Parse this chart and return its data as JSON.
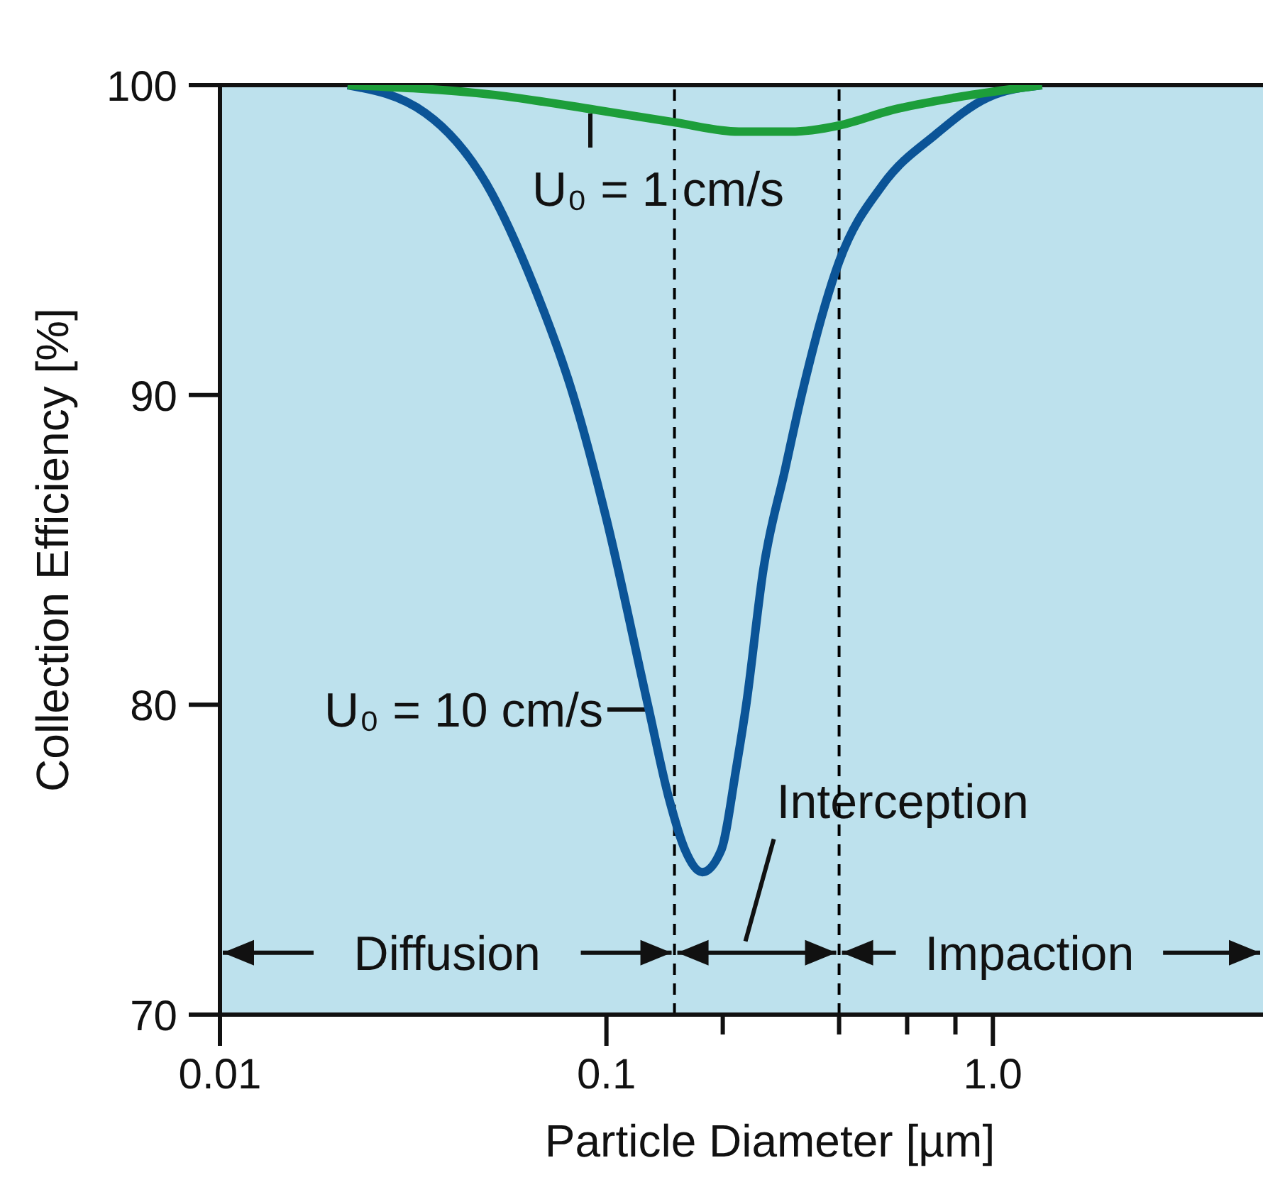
{
  "chart_data": {
    "type": "line",
    "xlabel": "Particle Diameter [µm]",
    "ylabel": "Collection Efficiency [%]",
    "log": "x",
    "xlim": [
      0.01,
      5
    ],
    "ylim": [
      70,
      100
    ],
    "xticks": [
      0.01,
      0.1,
      {
        "value": 0.2,
        "label": null
      },
      {
        "value": 0.4,
        "label": null
      },
      {
        "value": 0.6,
        "label": null
      },
      {
        "value": 0.8,
        "label": null
      },
      {
        "value": 1,
        "label": "1.0"
      }
    ],
    "yticks": [
      70,
      80,
      90,
      100
    ],
    "grid": false,
    "legend": false,
    "marker": "none",
    "line_style": "solid",
    "series": [
      {
        "name": "U₀ = 10 cm/s",
        "color": "#0b5497",
        "x": [
          0.0214,
          0.034,
          0.049,
          0.065,
          0.082,
          0.1,
          0.128,
          0.145,
          0.16,
          0.177,
          0.198,
          0.217,
          0.23,
          0.255,
          0.29,
          0.32,
          0.4,
          0.52,
          0.71,
          0.97,
          1.34
        ],
        "values": [
          100,
          99.1,
          96.8,
          93.5,
          90,
          86,
          80,
          77,
          75.3,
          74.6,
          75.3,
          78,
          80,
          84.4,
          87.6,
          90,
          94.3,
          96.8,
          98.4,
          99.6,
          100
        ]
      },
      {
        "name": "U₀ = 1 cm/s",
        "color": "#1d9e3a",
        "x": [
          0.0214,
          0.05,
          0.094,
          0.15,
          0.22,
          0.3,
          0.4,
          0.55,
          0.8,
          1.34
        ],
        "values": [
          100,
          99.7,
          99.2,
          98.8,
          98.5,
          98.5,
          98.7,
          99.2,
          99.6,
          100
        ]
      }
    ],
    "ref_lines": [
      {
        "axis": "x",
        "value": 0.15,
        "line_style": "dashed",
        "color": "#000000"
      },
      {
        "axis": "x",
        "value": 0.4,
        "line_style": "dashed",
        "color": "#000000"
      }
    ],
    "annotations": [
      {
        "text": "Diffusion",
        "x": 0.15,
        "y": 72
      },
      "Interception",
      {
        "text": "Impaction",
        "x": 0.4,
        "y": 72
      }
    ]
  }
}
